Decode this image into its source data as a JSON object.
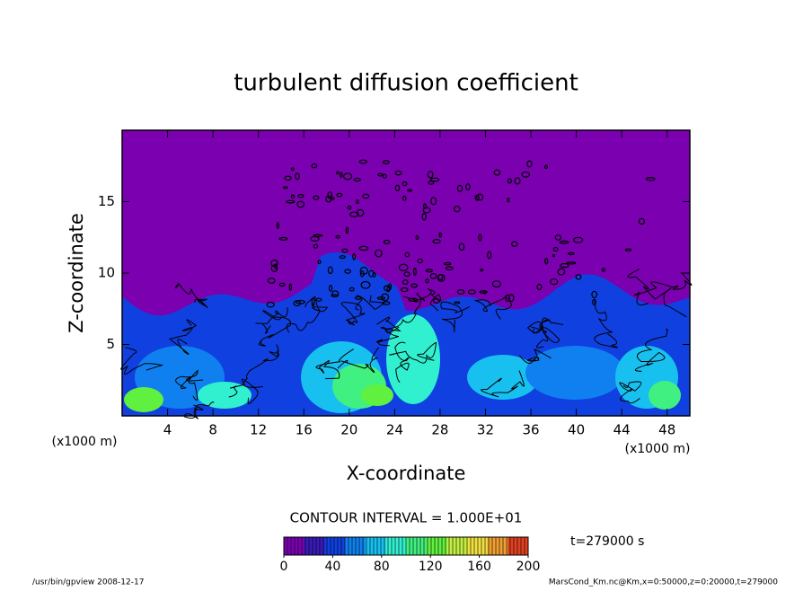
{
  "chart_data": {
    "type": "contour",
    "title": "turbulent diffusion coefficient",
    "x_label": "X-coordinate",
    "y_label": "Z-coordinate",
    "x_unit_label": "(x1000 m)",
    "xlim": [
      0,
      50
    ],
    "xticks": [
      4,
      8,
      12,
      16,
      20,
      24,
      28,
      32,
      36,
      40,
      44,
      48
    ],
    "ylim": [
      0,
      20
    ],
    "yticks": [
      5,
      10,
      15
    ],
    "contour_interval_label": "CONTOUR INTERVAL = 1.000E+01",
    "time_label": "t=279000 s",
    "colorbar": {
      "lim": [
        0,
        200
      ],
      "ticks": [
        0,
        40,
        80,
        120,
        160,
        200
      ],
      "colors": [
        "#7a00b0",
        "#3a1ab8",
        "#1040e0",
        "#1080f0",
        "#18c0f0",
        "#30f0d0",
        "#40f080",
        "#60f040",
        "#c0f040",
        "#f0e040",
        "#f0a030",
        "#e04020"
      ]
    },
    "footer_left": "/usr/bin/gpview   2008-12-17",
    "footer_right": "MarsCond_Km.nc@Km,x=0:50000,z=0:20000,t=279000"
  }
}
